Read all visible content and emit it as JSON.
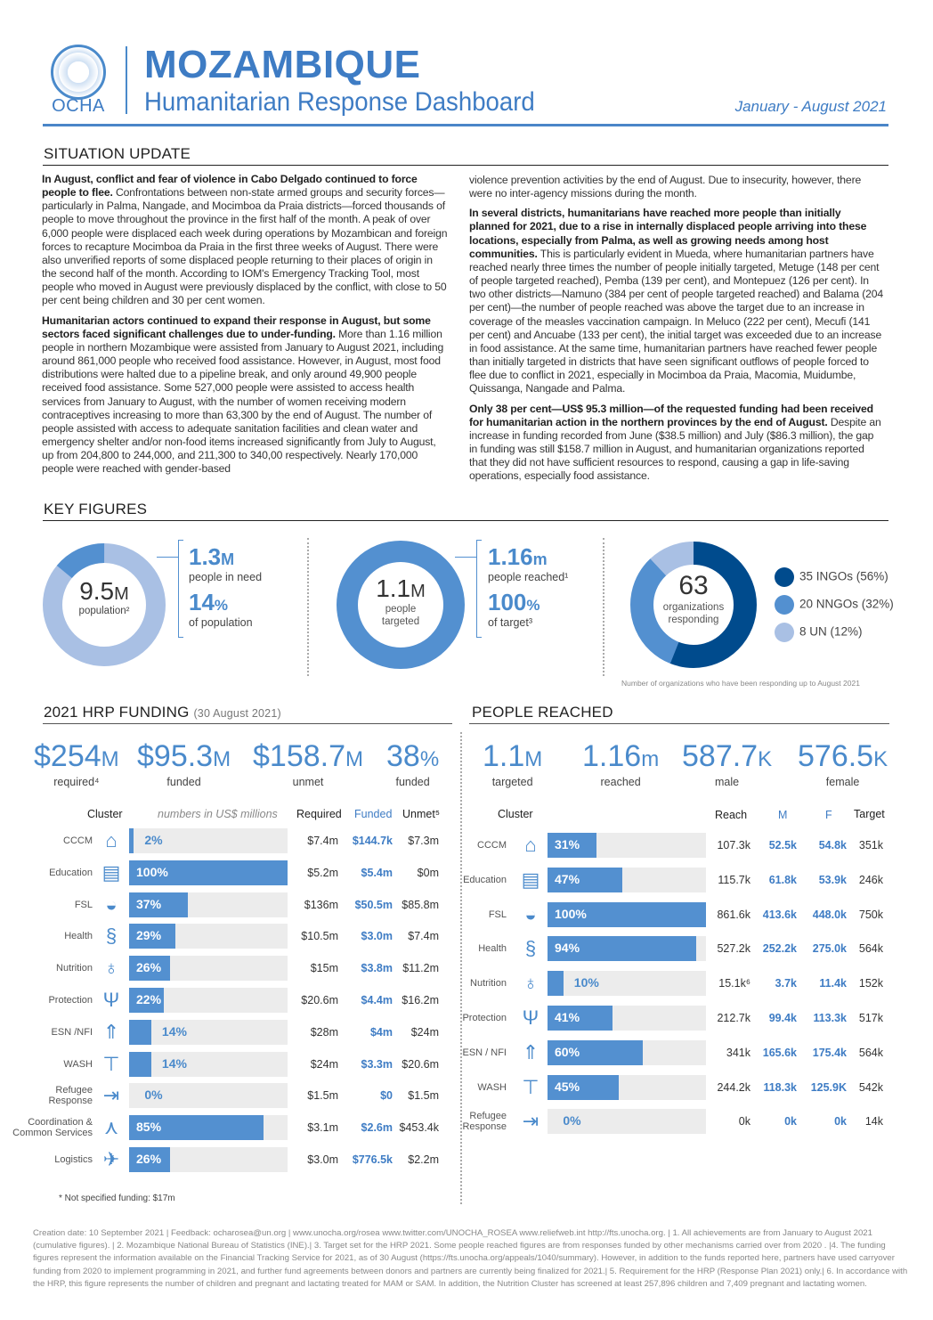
{
  "header": {
    "org": "OCHA",
    "title": "MOZAMBIQUE",
    "subtitle": "Humanitarian Response Dashboard",
    "period": "January - August 2021"
  },
  "situation": {
    "heading": "SITUATION UPDATE",
    "p1_bold": "In August, conflict and fear of violence in Cabo Delgado continued to force people to flee.",
    "p1": " Confrontations between non-state armed groups and security forces—particularly in Palma, Nangade, and Mocimboa da Praia districts—forced thousands of people to move throughout the province in the first half of the month. A peak of over 6,000 people were displaced each week during operations by Mozambican and foreign forces to recapture Mocimboa da Praia in the first three weeks of August. There were also unverified reports of some displaced people returning to their places of origin in the second half of the month. According to IOM's Emergency Tracking Tool, most people who moved in August were previously displaced by the conflict, with close to 50 per cent being children and 30 per cent women.",
    "p2_bold": "Humanitarian actors continued to expand their response in August, but some sectors faced significant challenges due to under-funding.",
    "p2": " More than 1.16 million people in northern Mozambique were assisted from January to August 2021, including around 861,000 people who received food assistance. However, in August, most food distributions were halted due to a pipeline break, and only around 49,900 people received food assistance. Some 527,000 people were assisted to access health services from January to August, with the number of women receiving modern contraceptives increasing to more than 63,300 by the end of August. The number of people assisted with access to adequate sanitation facilities and clean water and emergency shelter and/or non-food items increased significantly from July to August, up from 204,800 to 244,000, and 211,300 to 340,00 respectively. Nearly 170,000 people were reached with gender-based",
    "p2_cont": "violence prevention activities by the end of August. Due to insecurity, however, there were no inter-agency missions during the month.",
    "p3_bold": "In several districts, humanitarians have reached more people than initially planned for 2021, due to a rise in internally displaced people arriving into these locations, especially from Palma, as well as growing needs among host communities.",
    "p3": " This is particularly evident in Mueda, where humanitarian partners have reached nearly three times the number of people initially targeted, Metuge (148 per cent of people targeted reached), Pemba (139 per cent), and Montepuez (126 per cent). In two other districts—Namuno (384 per cent of people targeted reached) and Balama (204 per cent)—the number of people reached was above the target due to an increase in coverage of the measles vaccination campaign. In Meluco (222 per cent), Mecufi (141 per cent) and Ancuabe (133 per cent), the initial target was exceeded due to an increase in food assistance. At the same time, humanitarian partners have reached fewer people than initially targeted in districts that have seen significant outflows of people forced to flee due to conflict in 2021, especially in Mocimboa da Praia, Macomia, Muidumbe, Quissanga, Nangade and Palma.",
    "p4_bold": "Only 38 per cent—US$ 95.3 million—of the requested funding had been received for humanitarian action in the northern provinces by the end of August.",
    "p4": " Despite an increase in funding recorded from June ($38.5 million) and July ($86.3 million), the gap in funding was still $158.7 million in August, and humanitarian organizations reported that they did not have sufficient resources to respond, causing a gap in life-saving operations, especially food assistance."
  },
  "key_figures": {
    "heading": "KEY FIGURES",
    "population": {
      "value": "9.5",
      "unit": "M",
      "label": "population²",
      "in_need_pct_of_population": 14
    },
    "in_need": {
      "value": "1.3",
      "unit": "M",
      "label": "people in need",
      "pct": "14",
      "pct_unit": "%",
      "pct_label": "of population"
    },
    "targeted": {
      "value": "1.1",
      "unit": "M",
      "label1": "people",
      "label2": "targeted"
    },
    "reached": {
      "value": "1.16",
      "unit": "m",
      "label": "people reached¹",
      "pct": "100",
      "pct_unit": "%",
      "pct_label": "of target³"
    },
    "organizations": {
      "value": "63",
      "label1": "organizations",
      "label2": "responding",
      "note": "Number of organizations who have been responding up to August 2021",
      "segments": [
        {
          "label": "35 INGOs (56%)",
          "pct": 56,
          "color": "#004b8d"
        },
        {
          "label": "20 NNGOs (32%)",
          "pct": 32,
          "color": "#5390d0"
        },
        {
          "label": "8 UN (12%)",
          "pct": 12,
          "color": "#a9c0e4"
        }
      ]
    },
    "colors": {
      "dark": "#004b8d",
      "mid": "#5390d0",
      "light": "#a9c0e4"
    }
  },
  "funding": {
    "heading": "2021 HRP FUNDING",
    "heading_date": "(30 August 2021)",
    "stats": [
      {
        "value": "$254",
        "unit": "M",
        "label": "required⁴"
      },
      {
        "value": "$95.3",
        "unit": "M",
        "label": "funded"
      },
      {
        "value": "$158.7",
        "unit": "M",
        "label": "unmet"
      },
      {
        "value": "38",
        "unit": "%",
        "label": "funded"
      }
    ],
    "columns": {
      "cluster": "Cluster",
      "note": "numbers in US$ millions",
      "required": "Required",
      "funded": "Funded",
      "unmet": "Unmet⁵"
    },
    "rows": [
      {
        "cluster": "CCCM",
        "icon": "camp-icon",
        "pct": 2,
        "pct_label": "2%",
        "required": "$7.4m",
        "funded": "$144.7k",
        "unmet": "$7.3m"
      },
      {
        "cluster": "Education",
        "icon": "book-icon",
        "pct": 100,
        "pct_label": "100%",
        "required": "$5.2m",
        "funded": "$5.4m",
        "unmet": "$0m"
      },
      {
        "cluster": "FSL",
        "icon": "food-bowl-icon",
        "pct": 37,
        "pct_label": "37%",
        "required": "$136m",
        "funded": "$50.5m",
        "unmet": "$85.8m"
      },
      {
        "cluster": "Health",
        "icon": "health-caduceus-icon",
        "pct": 29,
        "pct_label": "29%",
        "required": "$10.5m",
        "funded": "$3.0m",
        "unmet": "$7.4m"
      },
      {
        "cluster": "Nutrition",
        "icon": "mother-child-icon",
        "pct": 26,
        "pct_label": "26%",
        "required": "$15m",
        "funded": "$3.8m",
        "unmet": "$11.2m"
      },
      {
        "cluster": "Protection",
        "icon": "protection-hands-icon",
        "pct": 22,
        "pct_label": "22%",
        "required": "$20.6m",
        "funded": "$4.4m",
        "unmet": "$16.2m"
      },
      {
        "cluster": "ESN /NFI",
        "icon": "shelter-icon",
        "pct": 14,
        "pct_label": "14%",
        "required": "$28m",
        "funded": "$4m",
        "unmet": "$24m"
      },
      {
        "cluster": "WASH",
        "icon": "water-tap-icon",
        "pct": 14,
        "pct_label": "14%",
        "required": "$24m",
        "funded": "$3.3m",
        "unmet": "$20.6m"
      },
      {
        "cluster": "Refugee Response",
        "icon": "refugee-icon",
        "pct": 0,
        "pct_label": "0%",
        "required": "$1.5m",
        "funded": "$0",
        "unmet": "$1.5m"
      },
      {
        "cluster": "Coordination & Common Services",
        "icon": "coordination-icon",
        "pct": 85,
        "pct_label": "85%",
        "required": "$3.1m",
        "funded": "$2.6m",
        "unmet": "$453.4k"
      },
      {
        "cluster": "Logistics",
        "icon": "logistics-icon",
        "pct": 26,
        "pct_label": "26%",
        "required": "$3.0m",
        "funded": "$776.5k",
        "unmet": "$2.2m"
      }
    ],
    "footnote": "* Not specified funding: $17m"
  },
  "people": {
    "heading": "PEOPLE REACHED",
    "stats": [
      {
        "value": "1.1",
        "unit": "M",
        "label": "targeted"
      },
      {
        "value": "1.16",
        "unit": "m",
        "label": "reached"
      },
      {
        "value": "587.7",
        "unit": "K",
        "label": "male"
      },
      {
        "value": "576.5",
        "unit": "K",
        "label": "female"
      }
    ],
    "columns": {
      "cluster": "Cluster",
      "reach": "Reach",
      "m": "M",
      "f": "F",
      "target": "Target"
    },
    "rows": [
      {
        "cluster": "CCCM",
        "icon": "camp-icon",
        "pct": 31,
        "pct_label": "31%",
        "reach": "107.3k",
        "m": "52.5k",
        "f": "54.8k",
        "target": "351k"
      },
      {
        "cluster": "Education",
        "icon": "book-icon",
        "pct": 47,
        "pct_label": "47%",
        "reach": "115.7k",
        "m": "61.8k",
        "f": "53.9k",
        "target": "246k"
      },
      {
        "cluster": "FSL",
        "icon": "food-bowl-icon",
        "pct": 100,
        "pct_label": "100%",
        "reach": "861.6k",
        "m": "413.6k",
        "f": "448.0k",
        "target": "750k"
      },
      {
        "cluster": "Health",
        "icon": "health-caduceus-icon",
        "pct": 94,
        "pct_label": "94%",
        "reach": "527.2k",
        "m": "252.2k",
        "f": "275.0k",
        "target": "564k"
      },
      {
        "cluster": "Nutrition",
        "icon": "mother-child-icon",
        "pct": 10,
        "pct_label": "10%",
        "reach": "15.1k⁶",
        "m": "3.7k",
        "f": "11.4k",
        "target": "152k"
      },
      {
        "cluster": "Protection",
        "icon": "protection-hands-icon",
        "pct": 41,
        "pct_label": "41%",
        "reach": "212.7k",
        "m": "99.4k",
        "f": "113.3k",
        "target": "517k"
      },
      {
        "cluster": "ESN / NFI",
        "icon": "shelter-icon",
        "pct": 60,
        "pct_label": "60%",
        "reach": "341k",
        "m": "165.6k",
        "f": "175.4k",
        "target": "564k"
      },
      {
        "cluster": "WASH",
        "icon": "water-tap-icon",
        "pct": 45,
        "pct_label": "45%",
        "reach": "244.2k",
        "m": "118.3k",
        "f": "125.9K",
        "target": "542k"
      },
      {
        "cluster": "Refugee Response",
        "icon": "refugee-icon",
        "pct": 0,
        "pct_label": "0%",
        "reach": "0k",
        "m": "0k",
        "f": "0k",
        "target": "14k"
      }
    ]
  },
  "footer": "Creation date: 10 September 2021 | Feedback: ocharosea@un.org | www.unocha.org/rosea www.twitter.com/UNOCHA_ROSEA www.reliefweb.int http://fts.unocha.org. | 1. All achievements are from January to August 2021 (cumulative figures). | 2. Mozambique National Bureau of Statistics (INE).| 3. Target set for the HRP 2021. Some people reached figures are from responses funded by other mechanisms carried over from 2020 . |4. The funding figures represent the information available on the Financial Tracking Service for 2021, as of 30 August (https://fts.unocha.org/appeals/1040/summary). However, in addition to the funds reported here, partners have used carryover funding from 2020 to implement programming in 2021, and further fund agreements between donors and partners are currently being finalized for 2021.| 5. Requirement for the HRP (Response Plan 2021) only.| 6. In accordance with the HRP, this figure represents the number of children and pregnant and lactating treated for MAM or SAM. In addition, the Nutrition Cluster has screened at least 257,896 children and 7,409 pregnant and lactating women."
}
